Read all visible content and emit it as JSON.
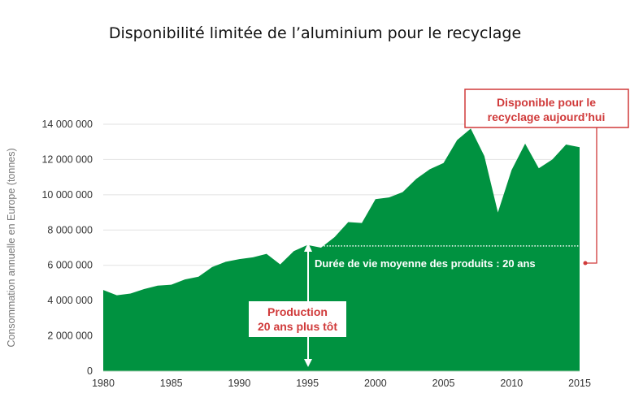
{
  "chart_data": {
    "type": "area",
    "title": "Disponibilité limitée de l’aluminium pour le recyclage",
    "xlabel": "",
    "ylabel": "Consommation annuelle en Europe (tonnes)",
    "x": [
      1980,
      1981,
      1982,
      1983,
      1984,
      1985,
      1986,
      1987,
      1988,
      1989,
      1990,
      1991,
      1992,
      1993,
      1994,
      1995,
      1996,
      1997,
      1998,
      1999,
      2000,
      2001,
      2002,
      2003,
      2004,
      2005,
      2006,
      2007,
      2008,
      2009,
      2010,
      2011,
      2012,
      2013,
      2014,
      2015
    ],
    "values": [
      4600000,
      4300000,
      4400000,
      4650000,
      4850000,
      4900000,
      5200000,
      5350000,
      5900000,
      6200000,
      6350000,
      6450000,
      6650000,
      6050000,
      6800000,
      7150000,
      7000000,
      7600000,
      8450000,
      8400000,
      9750000,
      9850000,
      10150000,
      10900000,
      11450000,
      11800000,
      13100000,
      13750000,
      12200000,
      9000000,
      11400000,
      12900000,
      11500000,
      12000000,
      12850000,
      12700000
    ],
    "xticks": [
      "1980",
      "1985",
      "1990",
      "1995",
      "2000",
      "2005",
      "2010",
      "2015"
    ],
    "yticks": [
      "0",
      "2 000 000",
      "4 000 000",
      "6 000 000",
      "8 000 000",
      "10 000 000",
      "12 000 000",
      "14 000 000"
    ],
    "xlim": [
      1980,
      2015
    ],
    "ylim": [
      0,
      14000000
    ],
    "grid": true,
    "colors": {
      "area": "#009240",
      "annotation": "#d03a3a"
    },
    "threshold_value": 7100000,
    "annotations": {
      "lifetime": "Durée de vie moyenne des produits : 20 ans",
      "production": [
        "Production",
        "20 ans plus tôt"
      ],
      "available": [
        "Disponible pour le",
        "recyclage aujourd’hui"
      ]
    }
  }
}
